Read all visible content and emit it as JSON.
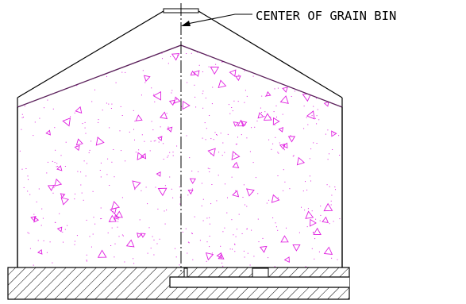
{
  "annotation": {
    "label": "CENTER OF GRAIN BIN"
  },
  "colors": {
    "line": "#000000",
    "grain_outline": "#5a1f5a",
    "grain_speckle": "#e020e0",
    "background": "#ffffff"
  },
  "icons": {
    "leader_arrow": "arrow-head-icon",
    "grain_fill": "stipple-triangles-pattern",
    "foundation_fill": "diagonal-hatch-pattern"
  }
}
